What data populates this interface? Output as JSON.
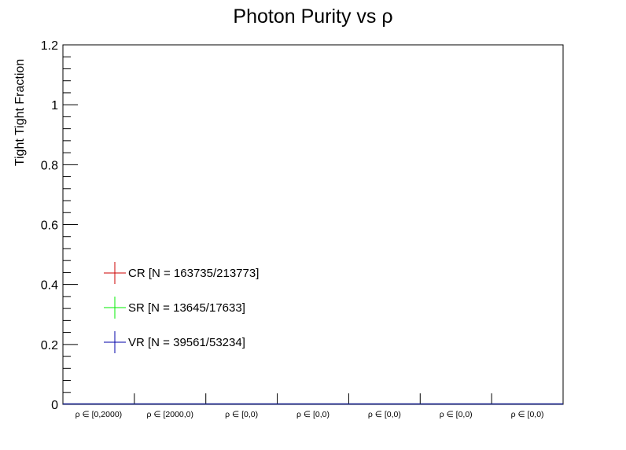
{
  "chart_data": {
    "type": "scatter",
    "title": "Photon Purity vs  ρ",
    "xlabel": "",
    "ylabel": "Tight Tight Fraction",
    "ylim": [
      0,
      1.2
    ],
    "yticks": [
      "0",
      "0.2",
      "0.4",
      "0.6",
      "0.8",
      "1",
      "1.2"
    ],
    "categories": [
      "ρ ∈ [0,2000)",
      "ρ ∈ [2000,0)",
      "ρ ∈ [0,0)",
      "ρ ∈ [0,0)",
      "ρ ∈ [0,0)",
      "ρ ∈ [0,0)",
      "ρ ∈ [0,0)"
    ],
    "grid": false,
    "legend_position": "left",
    "series": [
      {
        "name": "CR [N = 163735/213773]",
        "color": "#cc0000",
        "values": [
          0,
          0,
          0,
          0,
          0,
          0,
          0
        ]
      },
      {
        "name": "SR [N = 13645/17633]",
        "color": "#00ee00",
        "values": [
          0,
          0,
          0,
          0,
          0,
          0,
          0
        ]
      },
      {
        "name": "VR [N = 39561/53234]",
        "color": "#0000aa",
        "values": [
          0,
          0,
          0,
          0,
          0,
          0,
          0
        ]
      }
    ]
  }
}
